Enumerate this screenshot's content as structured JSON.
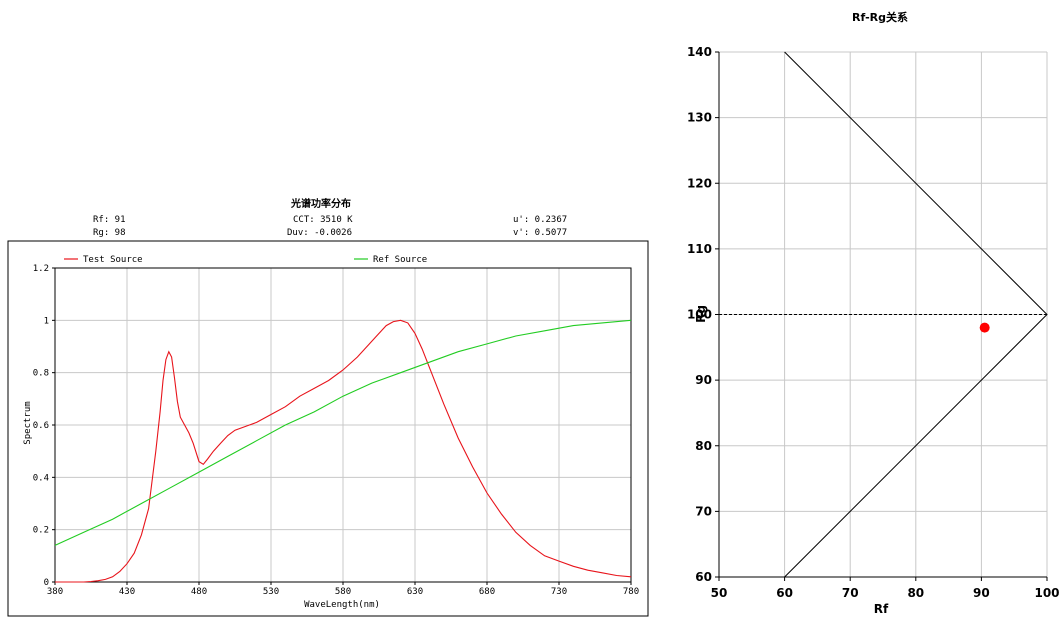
{
  "spectrum_panel": {
    "title": "光谱功率分布",
    "info": {
      "rf": "Rf: 91",
      "rg": "Rg: 98",
      "cct": "CCT: 3510 K",
      "duv": "Duv: -0.0026",
      "u": "u': 0.2367",
      "v": "v': 0.5077"
    }
  },
  "rfrg_panel": {
    "title": "Rf-Rg关系"
  },
  "colors": {
    "test": "#e8141b",
    "ref": "#22cc22",
    "grid": "#c8c8c8",
    "point": "#ff0000"
  },
  "chart_data": [
    {
      "type": "line",
      "title": "光谱功率分布",
      "xlabel": "WaveLength(nm)",
      "ylabel": "Spectrum",
      "xlim": [
        380,
        780
      ],
      "ylim": [
        0,
        1.2
      ],
      "xticks": [
        "380",
        "430",
        "480",
        "530",
        "580",
        "630",
        "680",
        "730",
        "780"
      ],
      "yticks": [
        "0",
        "0.2",
        "0.4",
        "0.6",
        "0.8",
        "1",
        "1.2"
      ],
      "grid": true,
      "legend": "top",
      "series": [
        {
          "name": "Test Source",
          "x": [
            380,
            390,
            400,
            405,
            410,
            415,
            420,
            425,
            430,
            435,
            440,
            445,
            450,
            453,
            455,
            457,
            459,
            461,
            463,
            465,
            467,
            470,
            473,
            476,
            480,
            483,
            486,
            490,
            495,
            500,
            505,
            510,
            515,
            520,
            530,
            540,
            550,
            560,
            570,
            580,
            590,
            600,
            605,
            610,
            615,
            620,
            625,
            630,
            635,
            640,
            650,
            660,
            670,
            680,
            690,
            700,
            710,
            720,
            730,
            740,
            750,
            760,
            770,
            780
          ],
          "y": [
            0,
            0,
            0,
            0.002,
            0.005,
            0.01,
            0.02,
            0.04,
            0.07,
            0.11,
            0.18,
            0.28,
            0.5,
            0.65,
            0.77,
            0.85,
            0.88,
            0.86,
            0.78,
            0.69,
            0.63,
            0.6,
            0.57,
            0.53,
            0.46,
            0.45,
            0.47,
            0.5,
            0.53,
            0.56,
            0.58,
            0.59,
            0.6,
            0.61,
            0.64,
            0.67,
            0.71,
            0.74,
            0.77,
            0.81,
            0.86,
            0.92,
            0.95,
            0.98,
            0.995,
            1.0,
            0.99,
            0.95,
            0.89,
            0.82,
            0.68,
            0.55,
            0.44,
            0.34,
            0.26,
            0.19,
            0.14,
            0.1,
            0.08,
            0.06,
            0.045,
            0.035,
            0.025,
            0.02
          ]
        },
        {
          "name": "Ref Source",
          "x": [
            380,
            400,
            420,
            440,
            460,
            480,
            500,
            520,
            540,
            560,
            580,
            600,
            620,
            640,
            660,
            680,
            700,
            720,
            740,
            760,
            780
          ],
          "y": [
            0.14,
            0.19,
            0.24,
            0.3,
            0.36,
            0.42,
            0.48,
            0.54,
            0.6,
            0.65,
            0.71,
            0.76,
            0.8,
            0.84,
            0.88,
            0.91,
            0.94,
            0.96,
            0.98,
            0.99,
            1.0
          ]
        }
      ]
    },
    {
      "type": "scatter",
      "title": "Rf-Rg关系",
      "xlabel": "Rf",
      "ylabel": "Rg",
      "xlim": [
        50,
        100
      ],
      "ylim": [
        60,
        140
      ],
      "xticks": [
        "50",
        "60",
        "70",
        "80",
        "90",
        "100"
      ],
      "yticks": [
        "60",
        "70",
        "80",
        "90",
        "100",
        "110",
        "120",
        "130",
        "140"
      ],
      "grid": true,
      "boundary": [
        [
          60,
          140
        ],
        [
          100,
          100
        ],
        [
          60,
          60
        ]
      ],
      "reference_line_y": 100,
      "points": [
        {
          "x": 90.5,
          "y": 98
        }
      ]
    }
  ]
}
